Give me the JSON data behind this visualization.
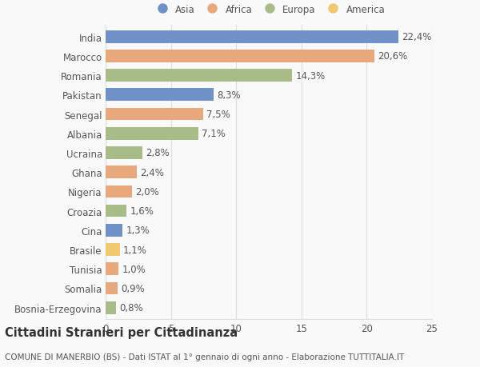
{
  "categories": [
    "India",
    "Marocco",
    "Romania",
    "Pakistan",
    "Senegal",
    "Albania",
    "Ucraina",
    "Ghana",
    "Nigeria",
    "Croazia",
    "Cina",
    "Brasile",
    "Tunisia",
    "Somalia",
    "Bosnia-Erzegovina"
  ],
  "values": [
    22.4,
    20.6,
    14.3,
    8.3,
    7.5,
    7.1,
    2.8,
    2.4,
    2.0,
    1.6,
    1.3,
    1.1,
    1.0,
    0.9,
    0.8
  ],
  "labels": [
    "22,4%",
    "20,6%",
    "14,3%",
    "8,3%",
    "7,5%",
    "7,1%",
    "2,8%",
    "2,4%",
    "2,0%",
    "1,6%",
    "1,3%",
    "1,1%",
    "1,0%",
    "0,9%",
    "0,8%"
  ],
  "continents": [
    "Asia",
    "Africa",
    "Europa",
    "Asia",
    "Africa",
    "Europa",
    "Europa",
    "Africa",
    "Africa",
    "Europa",
    "Asia",
    "America",
    "Africa",
    "Africa",
    "Europa"
  ],
  "colors": {
    "Asia": "#7090c8",
    "Africa": "#e8a87c",
    "Europa": "#a8bc88",
    "America": "#f0c96e"
  },
  "legend_order": [
    "Asia",
    "Africa",
    "Europa",
    "America"
  ],
  "title": "Cittadini Stranieri per Cittadinanza",
  "subtitle": "COMUNE DI MANERBIO (BS) - Dati ISTAT al 1° gennaio di ogni anno - Elaborazione TUTTITALIA.IT",
  "xlim": [
    0,
    25
  ],
  "xticks": [
    0,
    5,
    10,
    15,
    20,
    25
  ],
  "background_color": "#f9f9f9",
  "grid_color": "#dddddd",
  "bar_height": 0.65,
  "text_color": "#555555",
  "label_fontsize": 8.5,
  "tick_fontsize": 8.5,
  "title_fontsize": 10.5,
  "subtitle_fontsize": 7.5
}
